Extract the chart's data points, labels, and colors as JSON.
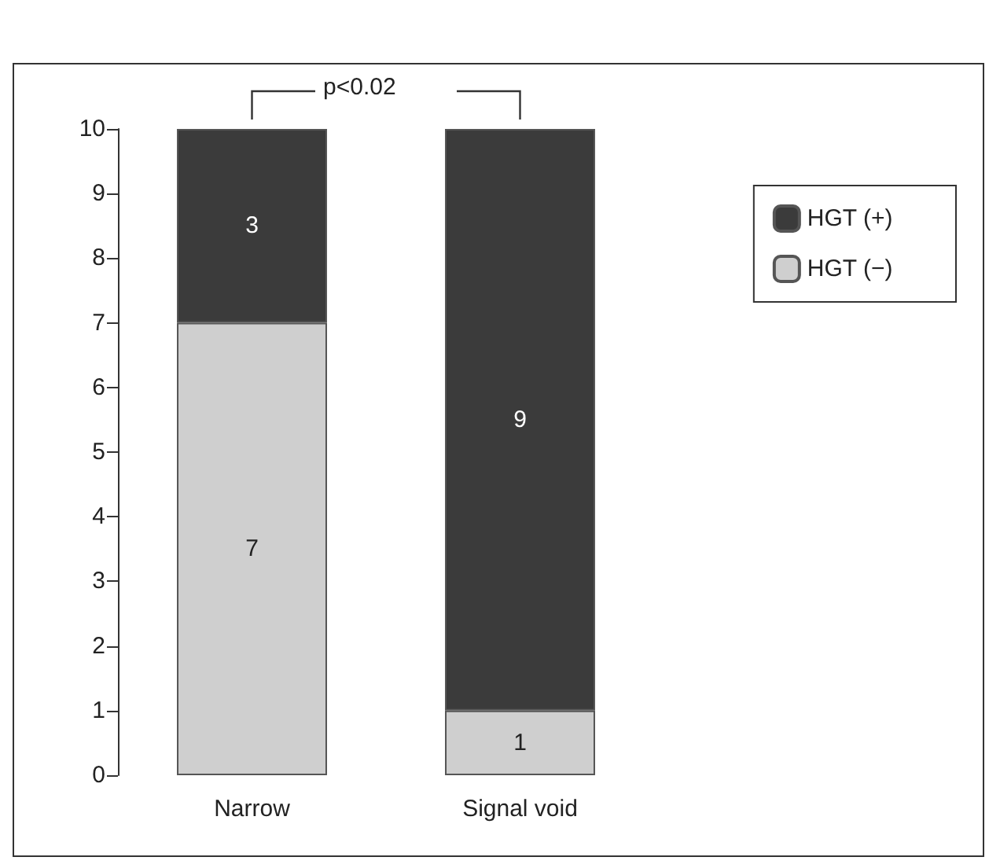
{
  "chart_data": {
    "type": "bar",
    "stacked": true,
    "categories": [
      "Narrow",
      "Signal void"
    ],
    "series": [
      {
        "name": "HGT (−)",
        "color": "#cfcfcf",
        "values": [
          7,
          1
        ]
      },
      {
        "name": "HGT (+)",
        "color": "#3b3b3b",
        "values": [
          3,
          9
        ]
      }
    ],
    "ylim": [
      0,
      10
    ],
    "yticks": [
      0,
      1,
      2,
      3,
      4,
      5,
      6,
      7,
      8,
      9,
      10
    ],
    "grid": false,
    "legend": "top right",
    "data_labels": true,
    "annotations": [
      "p<0.02"
    ]
  }
}
